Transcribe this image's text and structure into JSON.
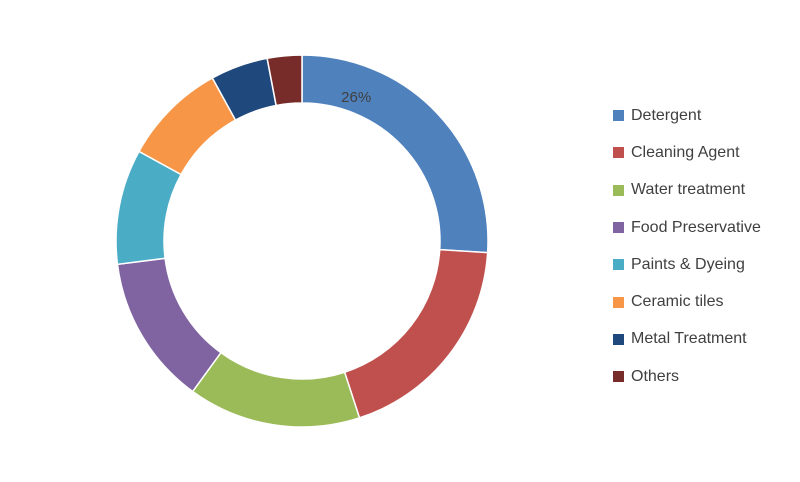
{
  "chart_data": {
    "type": "pie",
    "variant": "doughnut",
    "title": "",
    "legend_position": "right",
    "slices": [
      {
        "label": "Detergent",
        "value": 26,
        "color": "#4f81bd",
        "show_label": true,
        "label_text": "26%"
      },
      {
        "label": "Cleaning Agent",
        "value": 19,
        "color": "#c0504d",
        "show_label": false
      },
      {
        "label": "Water treatment",
        "value": 15,
        "color": "#9bbb59",
        "show_label": false
      },
      {
        "label": "Food Preservative",
        "value": 13,
        "color": "#8064a2",
        "show_label": false
      },
      {
        "label": "Paints & Dyeing",
        "value": 10,
        "color": "#4bacc6",
        "show_label": false
      },
      {
        "label": "Ceramic tiles",
        "value": 9,
        "color": "#f79646",
        "show_label": false
      },
      {
        "label": "Metal Treatment",
        "value": 5,
        "color": "#1f497d",
        "show_label": false
      },
      {
        "label": "Others",
        "value": 3,
        "color": "#772c2a",
        "show_label": false
      }
    ]
  }
}
